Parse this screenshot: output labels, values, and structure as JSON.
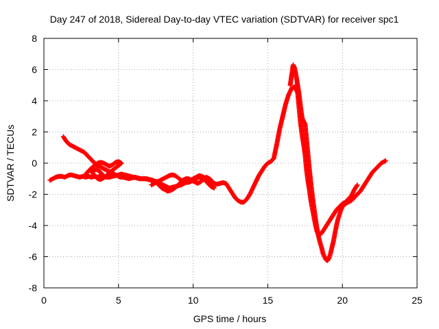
{
  "chart_data": {
    "type": "scatter",
    "title": "Day 247 of 2018, Sidereal Day-to-day VTEC variation (SDTVAR) for receiver spc1",
    "xlabel": "GPS time / hours",
    "ylabel": "SDTVAR / TECUs",
    "xlim": [
      0,
      25
    ],
    "ylim": [
      -8,
      8
    ],
    "xticks": [
      "0",
      "5",
      "10",
      "15",
      "20",
      "25"
    ],
    "yticks": [
      "-8",
      "-6",
      "-4",
      "-2",
      "0",
      "2",
      "4",
      "6",
      "8"
    ],
    "grid": true,
    "marker": "plus",
    "marker_color": "#ff0000",
    "series": [
      {
        "points": [
          [
            0.4,
            -1.1
          ],
          [
            0.6,
            -1.0
          ],
          [
            0.8,
            -0.9
          ],
          [
            1.0,
            -0.85
          ],
          [
            1.2,
            -0.85
          ],
          [
            1.4,
            -0.9
          ],
          [
            1.6,
            -0.8
          ],
          [
            1.8,
            -0.75
          ],
          [
            2.0,
            -0.8
          ],
          [
            2.2,
            -0.85
          ],
          [
            2.4,
            -0.9
          ],
          [
            2.6,
            -0.85
          ],
          [
            2.8,
            -0.9
          ],
          [
            3.0,
            -0.85
          ],
          [
            3.2,
            -0.9
          ],
          [
            3.4,
            -0.85
          ],
          [
            3.6,
            -0.9
          ],
          [
            3.8,
            -0.8
          ],
          [
            4.0,
            -0.85
          ],
          [
            4.2,
            -0.9
          ],
          [
            4.4,
            -0.9
          ],
          [
            4.6,
            -0.85
          ],
          [
            4.8,
            -0.8
          ],
          [
            5.0,
            -0.75
          ],
          [
            5.2,
            -0.7
          ],
          [
            5.4,
            -0.75
          ],
          [
            5.6,
            -0.8
          ],
          [
            5.8,
            -0.85
          ],
          [
            6.0,
            -0.9
          ],
          [
            6.2,
            -0.95
          ],
          [
            6.4,
            -1.0
          ],
          [
            6.6,
            -1.0
          ],
          [
            6.8,
            -1.0
          ],
          [
            7.0,
            -1.05
          ],
          [
            7.2,
            -1.1
          ],
          [
            7.4,
            -1.15
          ],
          [
            7.6,
            -1.2
          ],
          [
            7.8,
            -1.3
          ],
          [
            8.0,
            -1.4
          ],
          [
            8.2,
            -1.5
          ],
          [
            8.4,
            -1.6
          ],
          [
            8.6,
            -1.55
          ],
          [
            8.8,
            -1.5
          ],
          [
            9.0,
            -1.45
          ],
          [
            9.2,
            -1.4
          ],
          [
            9.4,
            -1.3
          ],
          [
            9.6,
            -1.2
          ],
          [
            9.8,
            -1.1
          ],
          [
            10.0,
            -1.0
          ],
          [
            10.2,
            -0.9
          ],
          [
            10.4,
            -0.8
          ],
          [
            10.6,
            -0.85
          ],
          [
            10.8,
            -0.95
          ],
          [
            11.0,
            -1.1
          ],
          [
            11.2,
            -1.2
          ],
          [
            11.4,
            -1.3
          ],
          [
            11.6,
            -1.35
          ],
          [
            11.8,
            -1.3
          ],
          [
            12.0,
            -1.25
          ],
          [
            12.2,
            -1.3
          ],
          [
            12.4,
            -1.6
          ],
          [
            12.6,
            -1.9
          ],
          [
            12.8,
            -2.2
          ],
          [
            13.0,
            -2.4
          ],
          [
            13.2,
            -2.5
          ],
          [
            13.4,
            -2.5
          ],
          [
            13.6,
            -2.3
          ],
          [
            13.8,
            -2.0
          ],
          [
            14.0,
            -1.6
          ],
          [
            14.2,
            -1.2
          ],
          [
            14.4,
            -0.8
          ],
          [
            14.6,
            -0.5
          ],
          [
            14.8,
            -0.2
          ],
          [
            15.0,
            0.0
          ],
          [
            15.2,
            0.1
          ],
          [
            15.4,
            0.3
          ],
          [
            15.6,
            1.2
          ],
          [
            15.8,
            2.2
          ],
          [
            16.0,
            3.0
          ],
          [
            16.2,
            3.8
          ],
          [
            16.4,
            4.4
          ],
          [
            16.6,
            4.8
          ],
          [
            16.8,
            4.9
          ],
          [
            17.0,
            4.5
          ],
          [
            17.1,
            3.5
          ],
          [
            17.2,
            2.5
          ],
          [
            17.3,
            1.8
          ],
          [
            17.4,
            1.2
          ],
          [
            17.5,
            0.5
          ],
          [
            17.6,
            -0.5
          ],
          [
            17.7,
            -1.2
          ],
          [
            17.8,
            -1.8
          ],
          [
            17.9,
            -2.5
          ],
          [
            18.0,
            -3.0
          ],
          [
            18.1,
            -3.5
          ],
          [
            18.2,
            -4.0
          ],
          [
            18.3,
            -4.4
          ],
          [
            18.4,
            -4.6
          ],
          [
            18.6,
            -4.5
          ],
          [
            18.8,
            -4.2
          ],
          [
            19.0,
            -3.9
          ],
          [
            19.2,
            -3.6
          ],
          [
            19.4,
            -3.3
          ],
          [
            19.6,
            -3.0
          ],
          [
            19.8,
            -2.8
          ],
          [
            20.0,
            -2.6
          ],
          [
            20.2,
            -2.5
          ],
          [
            20.4,
            -2.3
          ],
          [
            20.6,
            -2.1
          ],
          [
            20.8,
            -1.7
          ],
          [
            21.0,
            -1.4
          ]
        ]
      },
      {
        "points": [
          [
            1.3,
            1.7
          ],
          [
            1.5,
            1.4
          ],
          [
            1.7,
            1.2
          ],
          [
            1.9,
            1.1
          ],
          [
            2.1,
            1.0
          ],
          [
            2.3,
            0.9
          ],
          [
            2.5,
            0.8
          ],
          [
            2.7,
            0.7
          ],
          [
            2.9,
            0.5
          ],
          [
            3.1,
            0.3
          ],
          [
            3.3,
            0.1
          ],
          [
            3.5,
            -0.1
          ],
          [
            3.7,
            -0.2
          ],
          [
            3.9,
            -0.3
          ],
          [
            4.1,
            -0.4
          ],
          [
            4.3,
            -0.5
          ],
          [
            4.5,
            -0.6
          ],
          [
            4.7,
            -0.7
          ],
          [
            4.9,
            -0.8
          ],
          [
            5.1,
            -0.9
          ],
          [
            5.3,
            -0.9
          ],
          [
            5.5,
            -0.95
          ],
          [
            5.7,
            -1.0
          ],
          [
            5.9,
            -0.95
          ],
          [
            6.1,
            -0.9
          ],
          [
            6.3,
            -0.95
          ],
          [
            6.5,
            -1.0
          ],
          [
            6.7,
            -1.0
          ],
          [
            6.9,
            -1.0
          ],
          [
            7.1,
            -1.05
          ],
          [
            7.3,
            -1.1
          ],
          [
            7.5,
            -1.2
          ],
          [
            7.7,
            -1.4
          ],
          [
            7.9,
            -1.6
          ],
          [
            8.1,
            -1.7
          ],
          [
            8.3,
            -1.8
          ],
          [
            8.5,
            -1.75
          ],
          [
            8.7,
            -1.65
          ],
          [
            8.9,
            -1.5
          ],
          [
            9.1,
            -1.3
          ],
          [
            9.3,
            -1.1
          ],
          [
            9.5,
            -1.0
          ],
          [
            9.7,
            -1.0
          ],
          [
            9.9,
            -1.1
          ],
          [
            10.1,
            -1.2
          ],
          [
            10.3,
            -1.3
          ],
          [
            10.5,
            -1.2
          ],
          [
            10.7,
            -1.0
          ],
          [
            10.9,
            -0.9
          ],
          [
            11.1,
            -1.0
          ],
          [
            11.3,
            -1.2
          ],
          [
            11.5,
            -1.4
          ]
        ]
      },
      {
        "points": [
          [
            2.8,
            -0.7
          ],
          [
            3.0,
            -0.5
          ],
          [
            3.2,
            -0.3
          ],
          [
            3.4,
            -0.15
          ],
          [
            3.6,
            0.0
          ],
          [
            3.8,
            0.05
          ],
          [
            4.0,
            0.0
          ],
          [
            4.2,
            -0.1
          ],
          [
            4.4,
            -0.2
          ],
          [
            4.6,
            -0.1
          ],
          [
            4.8,
            0.05
          ],
          [
            5.0,
            0.1
          ],
          [
            5.2,
            0.0
          ],
          [
            4.4,
            -0.6
          ],
          [
            4.2,
            -0.8
          ],
          [
            4.0,
            -0.95
          ],
          [
            3.8,
            -1.05
          ],
          [
            3.6,
            -1.0
          ],
          [
            3.4,
            -0.8
          ],
          [
            3.2,
            -0.55
          ],
          [
            3.5,
            -0.4
          ],
          [
            3.7,
            -0.5
          ],
          [
            3.9,
            -0.7
          ]
        ]
      },
      {
        "points": [
          [
            7.2,
            -1.4
          ],
          [
            7.4,
            -1.3
          ],
          [
            7.6,
            -1.2
          ],
          [
            7.8,
            -1.1
          ],
          [
            8.0,
            -1.0
          ],
          [
            8.2,
            -0.9
          ],
          [
            8.4,
            -0.8
          ],
          [
            8.6,
            -0.75
          ],
          [
            8.8,
            -0.8
          ],
          [
            9.0,
            -0.95
          ],
          [
            9.2,
            -1.1
          ],
          [
            9.4,
            -1.2
          ],
          [
            9.6,
            -1.25
          ],
          [
            9.8,
            -1.2
          ],
          [
            10.0,
            -1.1
          ],
          [
            10.2,
            -1.0
          ],
          [
            10.4,
            -0.9
          ],
          [
            10.6,
            -1.0
          ],
          [
            10.8,
            -1.1
          ],
          [
            11.0,
            -1.3
          ],
          [
            11.2,
            -1.5
          ],
          [
            11.4,
            -1.6
          ]
        ]
      },
      {
        "points": [
          [
            16.5,
            5.0
          ],
          [
            16.7,
            6.3
          ],
          [
            16.8,
            6.1
          ],
          [
            16.9,
            5.6
          ],
          [
            17.0,
            5.0
          ],
          [
            17.1,
            4.4
          ],
          [
            17.2,
            3.6
          ],
          [
            17.3,
            2.9
          ],
          [
            17.5,
            2.5
          ],
          [
            17.6,
            1.5
          ],
          [
            17.7,
            0.5
          ],
          [
            17.8,
            -0.5
          ],
          [
            17.9,
            -1.4
          ],
          [
            18.0,
            -2.2
          ],
          [
            18.1,
            -2.9
          ],
          [
            18.2,
            -3.6
          ],
          [
            18.3,
            -4.2
          ],
          [
            18.4,
            -4.7
          ],
          [
            18.5,
            -5.1
          ],
          [
            18.6,
            -5.4
          ],
          [
            18.7,
            -5.8
          ],
          [
            18.8,
            -6.0
          ],
          [
            18.9,
            -6.2
          ],
          [
            19.0,
            -6.25
          ],
          [
            19.1,
            -6.1
          ],
          [
            19.2,
            -5.8
          ],
          [
            19.3,
            -5.4
          ],
          [
            19.4,
            -5.0
          ],
          [
            19.5,
            -4.5
          ],
          [
            19.6,
            -4.0
          ],
          [
            19.7,
            -3.6
          ],
          [
            19.8,
            -3.3
          ],
          [
            19.9,
            -3.0
          ],
          [
            20.0,
            -2.8
          ],
          [
            20.2,
            -2.6
          ],
          [
            20.4,
            -2.5
          ],
          [
            20.6,
            -2.4
          ],
          [
            20.8,
            -2.2
          ],
          [
            21.0,
            -2.0
          ],
          [
            21.2,
            -1.8
          ],
          [
            21.4,
            -1.5
          ],
          [
            21.6,
            -1.2
          ],
          [
            21.8,
            -0.9
          ],
          [
            22.0,
            -0.6
          ],
          [
            22.2,
            -0.4
          ],
          [
            22.4,
            -0.2
          ],
          [
            22.6,
            0.0
          ],
          [
            22.8,
            0.1
          ],
          [
            22.9,
            0.15
          ]
        ]
      }
    ]
  }
}
